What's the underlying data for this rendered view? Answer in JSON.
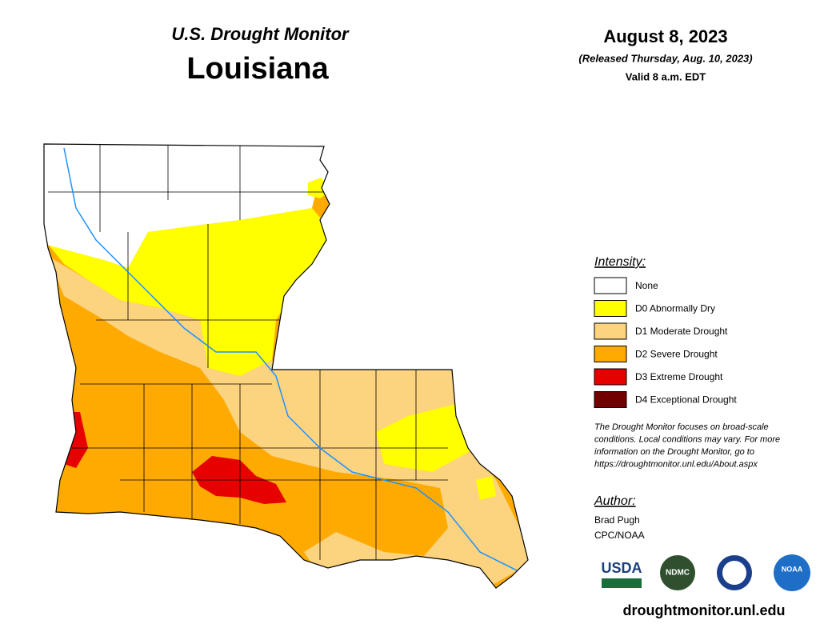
{
  "header": {
    "title": "U.S. Drought Monitor",
    "state": "Louisiana",
    "date": "August 8, 2023",
    "released": "(Released Thursday, Aug. 10, 2023)",
    "valid": "Valid 8 a.m. EDT"
  },
  "legend": {
    "title": "Intensity:",
    "items": [
      {
        "label": "None",
        "color": "#ffffff"
      },
      {
        "label": "D0 Abnormally Dry",
        "color": "#ffff00"
      },
      {
        "label": "D1 Moderate Drought",
        "color": "#fcd37f"
      },
      {
        "label": "D2 Severe Drought",
        "color": "#ffaa00"
      },
      {
        "label": "D3 Extreme Drought",
        "color": "#e60000"
      },
      {
        "label": "D4 Exceptional Drought",
        "color": "#730000"
      }
    ]
  },
  "note": [
    "The Drought Monitor focuses on broad-scale",
    "conditions. Local conditions may vary. For more",
    "information on the Drought Monitor, go to",
    "https://droughtmonitor.unl.edu/About.aspx"
  ],
  "author": {
    "title": "Author:",
    "names": [
      "Brad Pugh",
      "CPC/NOAA"
    ]
  },
  "logos": [
    "USDA",
    "NDMC",
    "NOAA"
  ],
  "url": "droughtmonitor.unl.edu"
}
